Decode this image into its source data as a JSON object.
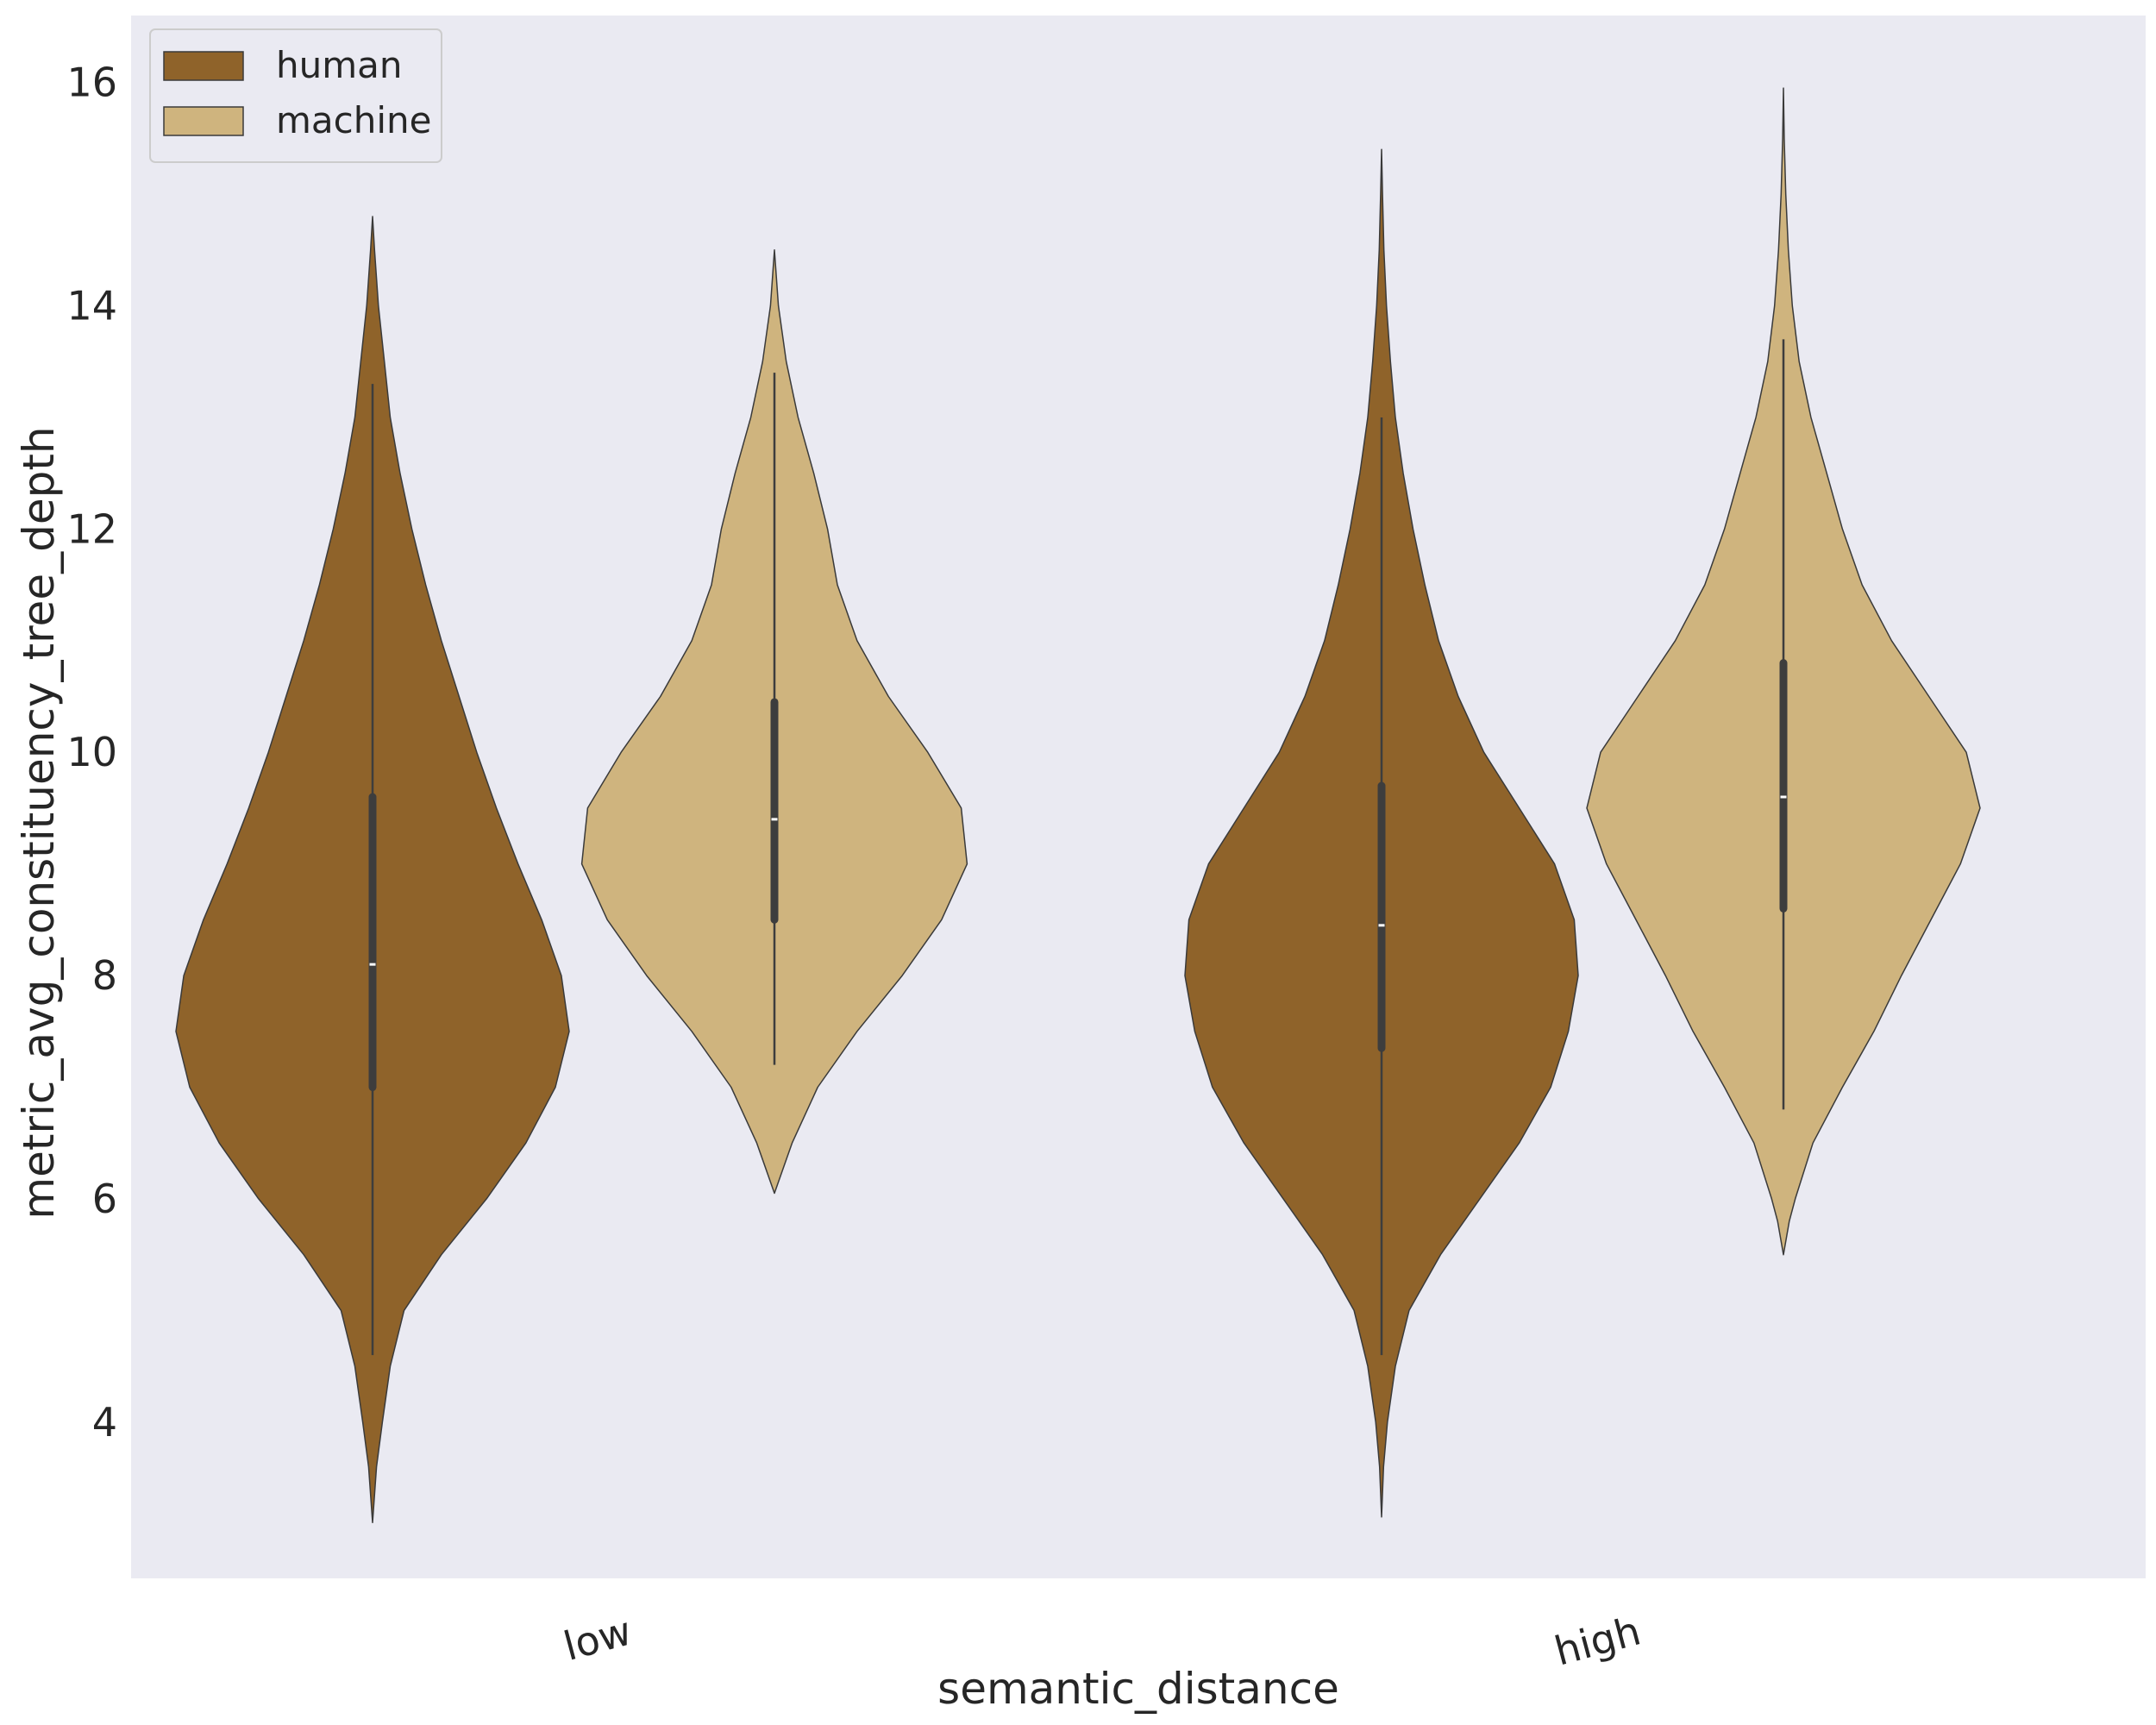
{
  "chart_data": {
    "type": "violin",
    "title": "",
    "xlabel": "semantic_distance",
    "ylabel": "metric_avg_constituency_tree_depth",
    "categories": [
      "low",
      "high"
    ],
    "ylim": [
      2.6,
      16.6
    ],
    "yticks": [
      4,
      6,
      8,
      10,
      12,
      14,
      16
    ],
    "grid": false,
    "legend_position": "top-left",
    "series": [
      {
        "name": "human",
        "color": "#8f632a",
        "violins": [
          {
            "category": "low",
            "min": 3.1,
            "max": 14.8,
            "whisker_low": 4.6,
            "q1": 7.0,
            "median": 8.1,
            "q3": 9.6,
            "whisker_high": 13.3,
            "profile": [
              [
                3.1,
                0.0
              ],
              [
                3.6,
                0.02
              ],
              [
                4.0,
                0.05
              ],
              [
                4.5,
                0.09
              ],
              [
                5.0,
                0.16
              ],
              [
                5.5,
                0.35
              ],
              [
                6.0,
                0.58
              ],
              [
                6.5,
                0.78
              ],
              [
                7.0,
                0.93
              ],
              [
                7.5,
                1.0
              ],
              [
                8.0,
                0.96
              ],
              [
                8.5,
                0.86
              ],
              [
                9.0,
                0.74
              ],
              [
                9.5,
                0.63
              ],
              [
                10.0,
                0.53
              ],
              [
                10.5,
                0.44
              ],
              [
                11.0,
                0.35
              ],
              [
                11.5,
                0.27
              ],
              [
                12.0,
                0.2
              ],
              [
                12.5,
                0.14
              ],
              [
                13.0,
                0.09
              ],
              [
                13.5,
                0.06
              ],
              [
                14.0,
                0.03
              ],
              [
                14.5,
                0.01
              ],
              [
                14.8,
                0.0
              ]
            ]
          },
          {
            "category": "high",
            "min": 3.15,
            "max": 15.4,
            "whisker_low": 4.6,
            "q1": 7.35,
            "median": 8.45,
            "q3": 9.7,
            "whisker_high": 13.0,
            "profile": [
              [
                3.15,
                0.0
              ],
              [
                3.6,
                0.01
              ],
              [
                4.0,
                0.03
              ],
              [
                4.5,
                0.07
              ],
              [
                5.0,
                0.14
              ],
              [
                5.5,
                0.3
              ],
              [
                6.0,
                0.5
              ],
              [
                6.5,
                0.7
              ],
              [
                7.0,
                0.86
              ],
              [
                7.5,
                0.95
              ],
              [
                8.0,
                1.0
              ],
              [
                8.5,
                0.98
              ],
              [
                9.0,
                0.88
              ],
              [
                9.5,
                0.7
              ],
              [
                10.0,
                0.52
              ],
              [
                10.5,
                0.39
              ],
              [
                11.0,
                0.29
              ],
              [
                11.5,
                0.22
              ],
              [
                12.0,
                0.16
              ],
              [
                12.5,
                0.11
              ],
              [
                13.0,
                0.07
              ],
              [
                13.5,
                0.045
              ],
              [
                14.0,
                0.025
              ],
              [
                14.5,
                0.012
              ],
              [
                15.0,
                0.005
              ],
              [
                15.4,
                0.0
              ]
            ]
          }
        ]
      },
      {
        "name": "machine",
        "color": "#cfb47e",
        "violins": [
          {
            "category": "low",
            "min": 6.05,
            "max": 14.5,
            "whisker_low": 7.2,
            "q1": 8.5,
            "median": 9.4,
            "q3": 10.45,
            "whisker_high": 13.4,
            "profile": [
              [
                6.05,
                0.0
              ],
              [
                6.2,
                0.03
              ],
              [
                6.5,
                0.09
              ],
              [
                7.0,
                0.22
              ],
              [
                7.5,
                0.42
              ],
              [
                8.0,
                0.65
              ],
              [
                8.5,
                0.85
              ],
              [
                9.0,
                0.98
              ],
              [
                9.5,
                0.95
              ],
              [
                10.0,
                0.78
              ],
              [
                10.5,
                0.58
              ],
              [
                11.0,
                0.42
              ],
              [
                11.5,
                0.32
              ],
              [
                12.0,
                0.27
              ],
              [
                12.5,
                0.2
              ],
              [
                13.0,
                0.12
              ],
              [
                13.5,
                0.06
              ],
              [
                14.0,
                0.02
              ],
              [
                14.5,
                0.0
              ]
            ]
          },
          {
            "category": "high",
            "min": 5.5,
            "max": 15.95,
            "whisker_low": 6.8,
            "q1": 8.6,
            "median": 9.6,
            "q3": 10.8,
            "whisker_high": 13.7,
            "profile": [
              [
                5.5,
                0.0
              ],
              [
                5.8,
                0.03
              ],
              [
                6.0,
                0.06
              ],
              [
                6.5,
                0.15
              ],
              [
                7.0,
                0.3
              ],
              [
                7.5,
                0.46
              ],
              [
                8.0,
                0.6
              ],
              [
                8.5,
                0.75
              ],
              [
                9.0,
                0.9
              ],
              [
                9.5,
                1.0
              ],
              [
                10.0,
                0.93
              ],
              [
                10.5,
                0.74
              ],
              [
                11.0,
                0.55
              ],
              [
                11.5,
                0.4
              ],
              [
                12.0,
                0.3
              ],
              [
                12.5,
                0.22
              ],
              [
                13.0,
                0.14
              ],
              [
                13.5,
                0.08
              ],
              [
                14.0,
                0.045
              ],
              [
                14.5,
                0.025
              ],
              [
                15.0,
                0.012
              ],
              [
                15.5,
                0.004
              ],
              [
                15.95,
                0.0
              ]
            ]
          }
        ]
      }
    ]
  }
}
